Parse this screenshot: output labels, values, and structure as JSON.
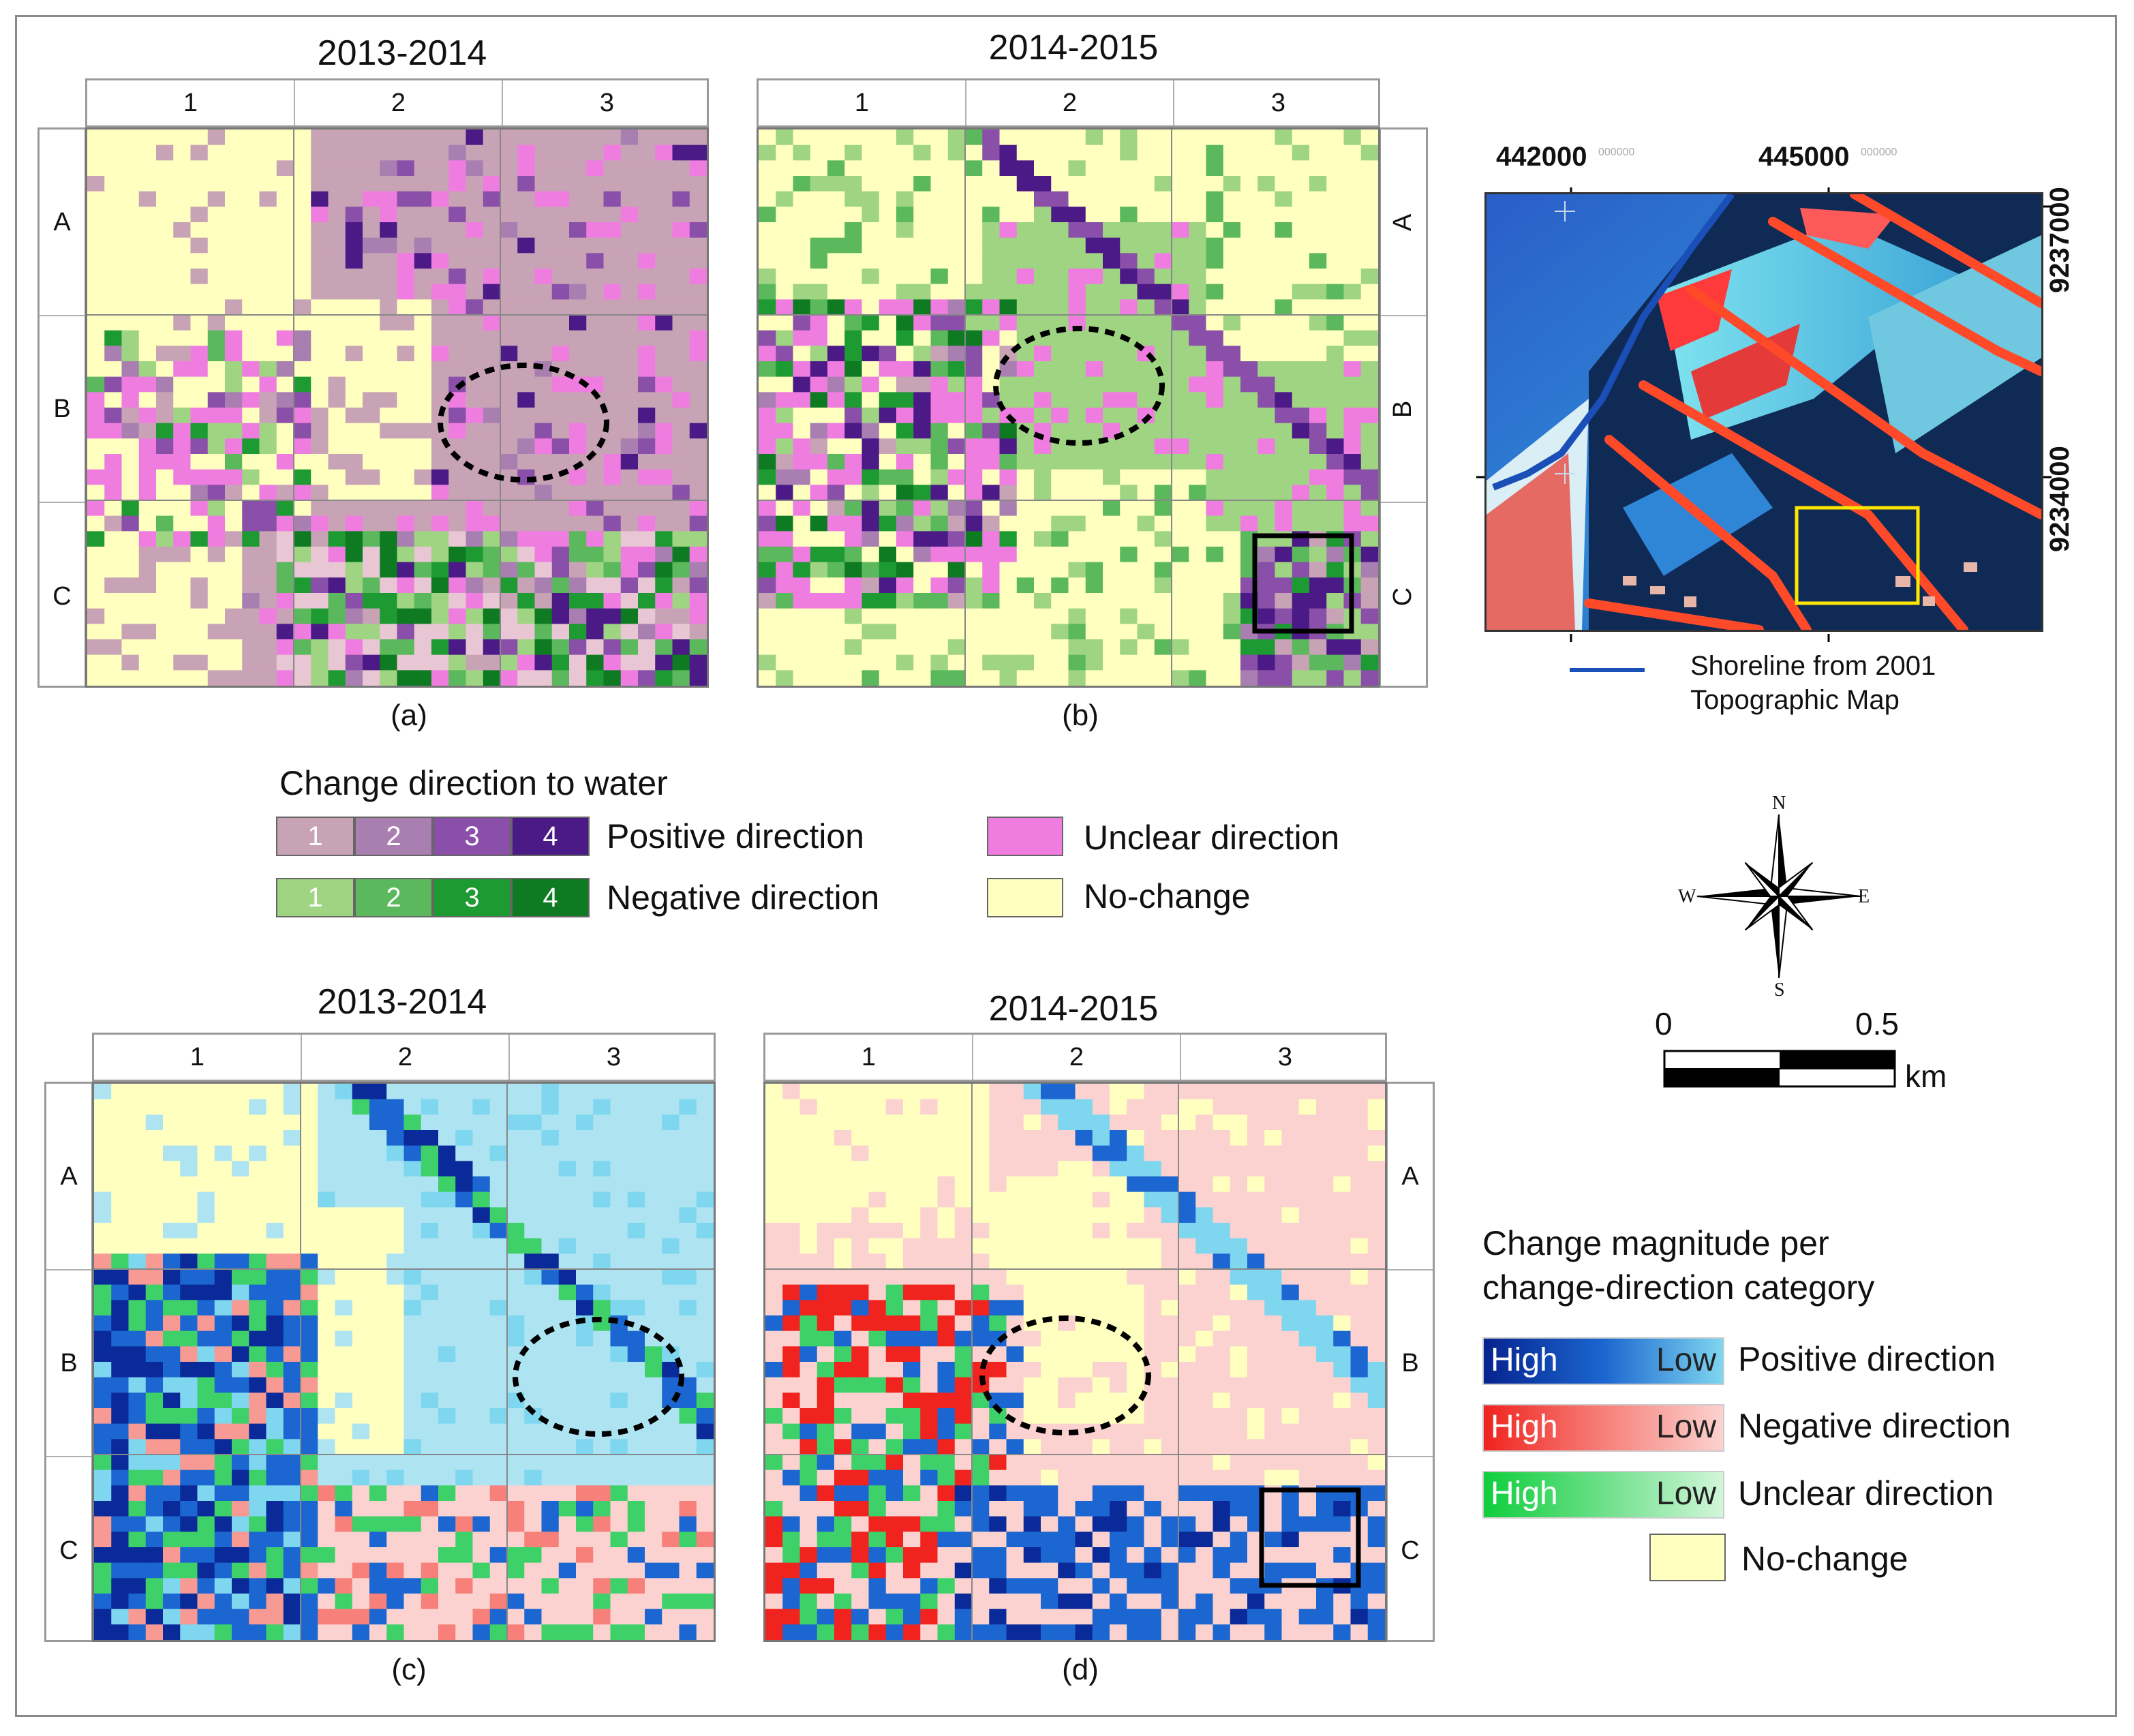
{
  "panels": {
    "a": {
      "title": "2013-2014",
      "caption": "(a)"
    },
    "b": {
      "title": "2014-2015",
      "caption": "(b)"
    },
    "c": {
      "title": "2013-2014",
      "caption": "(c)"
    },
    "d": {
      "title": "2014-2015",
      "caption": "(d)"
    }
  },
  "grid": {
    "columns": [
      "1",
      "2",
      "3"
    ],
    "rows": [
      "A",
      "B",
      "C"
    ]
  },
  "direction_legend": {
    "title": "Change direction to water",
    "positive_label": "Positive direction",
    "negative_label": "Negative direction",
    "unclear_label": "Unclear direction",
    "nochange_label": "No-change",
    "levels": [
      "1",
      "2",
      "3",
      "4"
    ],
    "positive_colors": [
      "#c8a3b5",
      "#a97fb2",
      "#8a4fa8",
      "#4b1a86"
    ],
    "negative_colors": [
      "#9fd483",
      "#5cb85c",
      "#1e9a33",
      "#0e7a22"
    ],
    "unclear_color": "#ef7de0",
    "nochange_color": "#ffffc0"
  },
  "magnitude_legend": {
    "title_line1": "Change magnitude per",
    "title_line2": "change-direction category",
    "high": "High",
    "low": "Low",
    "positive_label": "Positive direction",
    "negative_label": "Negative direction",
    "unclear_label": "Unclear direction",
    "nochange_label": "No-change"
  },
  "inset_map": {
    "easting_1": "442000",
    "easting_2": "445000",
    "northing_1": "9237000",
    "northing_2": "9234000",
    "shoreline_line1": "Shoreline from 2001",
    "shoreline_line2": "Topographic Map"
  },
  "compass": {
    "n": "N",
    "s": "S",
    "e": "E",
    "w": "W"
  },
  "scale_bar": {
    "start": "0",
    "end": "0.5",
    "unit": "km"
  }
}
